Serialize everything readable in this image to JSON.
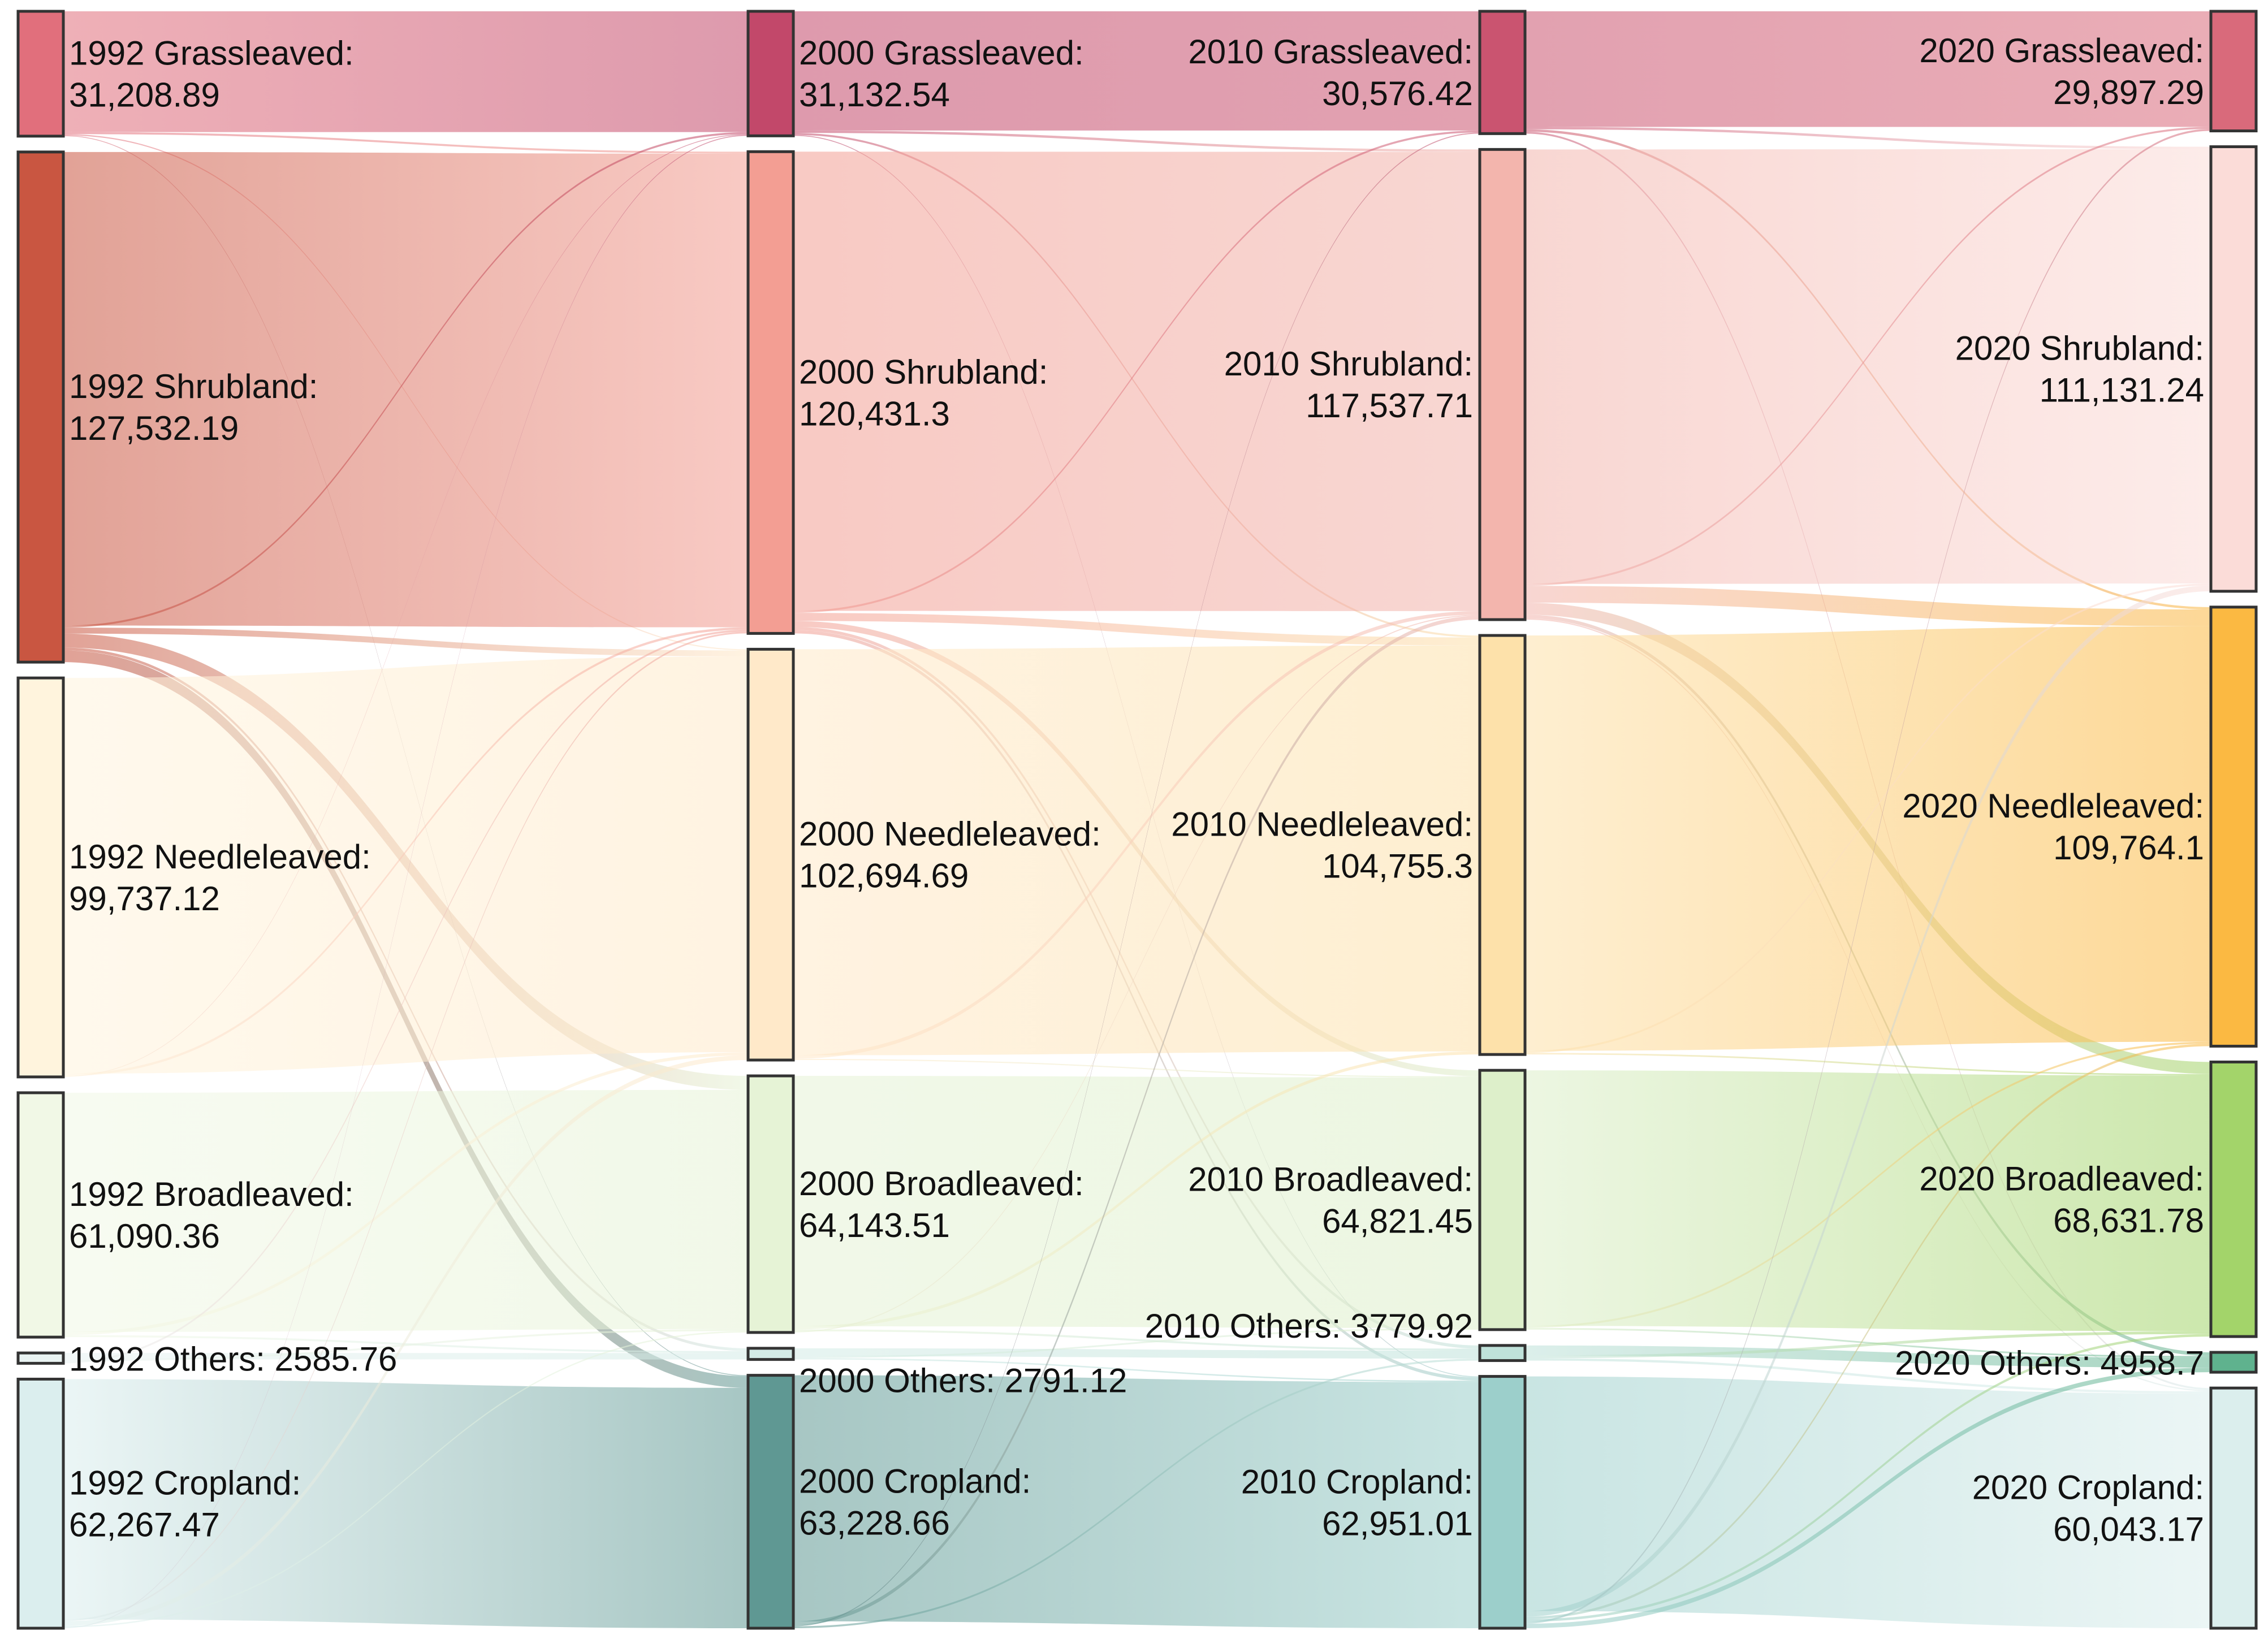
{
  "chart_data": {
    "type": "sankey",
    "title": "",
    "columns": [
      "1992",
      "2000",
      "2010",
      "2020"
    ],
    "categories": [
      "Grassleaved",
      "Shrubland",
      "Needleleaved",
      "Broadleaved",
      "Others",
      "Cropland"
    ],
    "nodes": [
      {
        "id": "1992-Grassleaved",
        "year": "1992",
        "category": "Grassleaved",
        "value": 31208.89,
        "color": "#e16f7c",
        "line1": "1992 Grassleaved:",
        "line2": "31,208.89"
      },
      {
        "id": "1992-Shrubland",
        "year": "1992",
        "category": "Shrubland",
        "value": 127532.19,
        "color": "#c95641",
        "line1": "1992 Shrubland:",
        "line2": "127,532.19"
      },
      {
        "id": "1992-Needleleaved",
        "year": "1992",
        "category": "Needleleaved",
        "value": 99737.12,
        "color": "#fff4dd",
        "line1": "1992 Needleleaved:",
        "line2": "99,737.12"
      },
      {
        "id": "1992-Broadleaved",
        "year": "1992",
        "category": "Broadleaved",
        "value": 61090.36,
        "color": "#f1f8e6",
        "line1": "1992 Broadleaved:",
        "line2": "61,090.36"
      },
      {
        "id": "1992-Others",
        "year": "1992",
        "category": "Others",
        "value": 2585.76,
        "color": "#e9f3f2",
        "line1": "1992 Others: 2585.76",
        "line2": ""
      },
      {
        "id": "1992-Cropland",
        "year": "1992",
        "category": "Cropland",
        "value": 62267.47,
        "color": "#dbeeee",
        "line1": "1992 Cropland:",
        "line2": "62,267.47"
      },
      {
        "id": "2000-Grassleaved",
        "year": "2000",
        "category": "Grassleaved",
        "value": 31132.54,
        "color": "#c2486a",
        "line1": "2000 Grassleaved:",
        "line2": "31,132.54"
      },
      {
        "id": "2000-Shrubland",
        "year": "2000",
        "category": "Shrubland",
        "value": 120431.3,
        "color": "#f39e93",
        "line1": "2000 Shrubland:",
        "line2": "120,431.3"
      },
      {
        "id": "2000-Needleleaved",
        "year": "2000",
        "category": "Needleleaved",
        "value": 102694.69,
        "color": "#ffe9c9",
        "line1": "2000 Needleleaved:",
        "line2": "102,694.69"
      },
      {
        "id": "2000-Broadleaved",
        "year": "2000",
        "category": "Broadleaved",
        "value": 64143.51,
        "color": "#e6f3d6",
        "line1": "2000 Broadleaved:",
        "line2": "64,143.51"
      },
      {
        "id": "2000-Others",
        "year": "2000",
        "category": "Others",
        "value": 2791.12,
        "color": "#d3ebe6",
        "line1": "2000 Others: 2791.12",
        "line2": ""
      },
      {
        "id": "2000-Cropland",
        "year": "2000",
        "category": "Cropland",
        "value": 63228.66,
        "color": "#5f9893",
        "line1": "2000 Cropland:",
        "line2": "63,228.66"
      },
      {
        "id": "2010-Grassleaved",
        "year": "2010",
        "category": "Grassleaved",
        "value": 30576.42,
        "color": "#ca5470",
        "line1": "2010 Grassleaved:",
        "line2": "30,576.42"
      },
      {
        "id": "2010-Shrubland",
        "year": "2010",
        "category": "Shrubland",
        "value": 117537.71,
        "color": "#f3b5ad",
        "line1": "2010 Shrubland:",
        "line2": "117,537.71"
      },
      {
        "id": "2010-Needleleaved",
        "year": "2010",
        "category": "Needleleaved",
        "value": 104755.3,
        "color": "#fde1aa",
        "line1": "2010 Needleleaved:",
        "line2": "104,755.3"
      },
      {
        "id": "2010-Broadleaved",
        "year": "2010",
        "category": "Broadleaved",
        "value": 64821.45,
        "color": "#ddefca",
        "line1": "2010 Broadleaved:",
        "line2": "64,821.45"
      },
      {
        "id": "2010-Others",
        "year": "2010",
        "category": "Others",
        "value": 3779.92,
        "color": "#bfe2da",
        "line1": "2010 Others: 3779.92",
        "line2": ""
      },
      {
        "id": "2010-Cropland",
        "year": "2010",
        "category": "Cropland",
        "value": 62951.01,
        "color": "#9ccfcb",
        "line1": "2010 Cropland:",
        "line2": "62,951.01"
      },
      {
        "id": "2020-Grassleaved",
        "year": "2020",
        "category": "Grassleaved",
        "value": 29897.29,
        "color": "#d96a7b",
        "line1": "2020 Grassleaved:",
        "line2": "29,897.29"
      },
      {
        "id": "2020-Shrubland",
        "year": "2020",
        "category": "Shrubland",
        "value": 111131.24,
        "color": "#fbdcd8",
        "line1": "2020 Shrubland:",
        "line2": "111,131.24"
      },
      {
        "id": "2020-Needleleaved",
        "year": "2020",
        "category": "Needleleaved",
        "value": 109764.1,
        "color": "#fbb942",
        "line1": "2020 Needleleaved:",
        "line2": "109,764.1"
      },
      {
        "id": "2020-Broadleaved",
        "year": "2020",
        "category": "Broadleaved",
        "value": 68631.78,
        "color": "#a3d46a",
        "line1": "2020 Broadleaved:",
        "line2": "68,631.78"
      },
      {
        "id": "2020-Others",
        "year": "2020",
        "category": "Others",
        "value": 4958.7,
        "color": "#5fb28e",
        "line1": "2020 Others:  4958.7",
        "line2": ""
      },
      {
        "id": "2020-Cropland",
        "year": "2020",
        "category": "Cropland",
        "value": 60043.17,
        "color": "#dbeeed",
        "line1": "2020 Cropland:",
        "line2": "60,043.17"
      }
    ],
    "links": [
      {
        "source": "1992-Grassleaved",
        "target": "2000-Grassleaved",
        "value": 30200
      },
      {
        "source": "1992-Grassleaved",
        "target": "2000-Shrubland",
        "value": 500
      },
      {
        "source": "1992-Grassleaved",
        "target": "2000-Needleleaved",
        "value": 300
      },
      {
        "source": "1992-Grassleaved",
        "target": "2000-Cropland",
        "value": 208.89
      },
      {
        "source": "1992-Shrubland",
        "target": "2000-Shrubland",
        "value": 118400
      },
      {
        "source": "1992-Shrubland",
        "target": "2000-Grassleaved",
        "value": 500
      },
      {
        "source": "1992-Shrubland",
        "target": "2000-Needleleaved",
        "value": 1500
      },
      {
        "source": "1992-Shrubland",
        "target": "2000-Broadleaved",
        "value": 3500
      },
      {
        "source": "1992-Shrubland",
        "target": "2000-Others",
        "value": 700
      },
      {
        "source": "1992-Shrubland",
        "target": "2000-Cropland",
        "value": 2932.19
      },
      {
        "source": "1992-Needleleaved",
        "target": "2000-Needleleaved",
        "value": 98937.12
      },
      {
        "source": "1992-Needleleaved",
        "target": "2000-Shrubland",
        "value": 600
      },
      {
        "source": "1992-Needleleaved",
        "target": "2000-Grassleaved",
        "value": 200
      },
      {
        "source": "1992-Broadleaved",
        "target": "2000-Broadleaved",
        "value": 59800
      },
      {
        "source": "1992-Broadleaved",
        "target": "2000-Needleleaved",
        "value": 800
      },
      {
        "source": "1992-Broadleaved",
        "target": "2000-Others",
        "value": 490.36
      },
      {
        "source": "1992-Others",
        "target": "2000-Others",
        "value": 1600.76
      },
      {
        "source": "1992-Others",
        "target": "2000-Broadleaved",
        "value": 485
      },
      {
        "source": "1992-Others",
        "target": "2000-Shrubland",
        "value": 500
      },
      {
        "source": "1992-Cropland",
        "target": "2000-Cropland",
        "value": 60087.47
      },
      {
        "source": "1992-Cropland",
        "target": "2000-Shrubland",
        "value": 431.3
      },
      {
        "source": "1992-Cropland",
        "target": "2000-Needleleaved",
        "value": 1157.57
      },
      {
        "source": "1992-Cropland",
        "target": "2000-Broadleaved",
        "value": 358.51
      },
      {
        "source": "1992-Cropland",
        "target": "2000-Grassleaved",
        "value": 232.54
      },
      {
        "source": "2000-Grassleaved",
        "target": "2010-Grassleaved",
        "value": 29800
      },
      {
        "source": "2000-Grassleaved",
        "target": "2010-Shrubland",
        "value": 600
      },
      {
        "source": "2000-Grassleaved",
        "target": "2010-Needleleaved",
        "value": 500
      },
      {
        "source": "2000-Grassleaved",
        "target": "2010-Cropland",
        "value": 232.54
      },
      {
        "source": "2000-Shrubland",
        "target": "2010-Shrubland",
        "value": 114800
      },
      {
        "source": "2000-Shrubland",
        "target": "2010-Grassleaved",
        "value": 500
      },
      {
        "source": "2000-Shrubland",
        "target": "2010-Needleleaved",
        "value": 2000
      },
      {
        "source": "2000-Shrubland",
        "target": "2010-Broadleaved",
        "value": 1500
      },
      {
        "source": "2000-Shrubland",
        "target": "2010-Others",
        "value": 800
      },
      {
        "source": "2000-Shrubland",
        "target": "2010-Cropland",
        "value": 831.3
      },
      {
        "source": "2000-Needleleaved",
        "target": "2010-Needleleaved",
        "value": 101494.69
      },
      {
        "source": "2000-Needleleaved",
        "target": "2010-Shrubland",
        "value": 900
      },
      {
        "source": "2000-Needleleaved",
        "target": "2010-Broadleaved",
        "value": 300
      },
      {
        "source": "2000-Broadleaved",
        "target": "2010-Broadleaved",
        "value": 62600
      },
      {
        "source": "2000-Broadleaved",
        "target": "2010-Needleleaved",
        "value": 760.61
      },
      {
        "source": "2000-Broadleaved",
        "target": "2010-Others",
        "value": 500
      },
      {
        "source": "2000-Broadleaved",
        "target": "2010-Shrubland",
        "value": 282.9
      },
      {
        "source": "2000-Others",
        "target": "2010-Others",
        "value": 2000
      },
      {
        "source": "2000-Others",
        "target": "2010-Broadleaved",
        "value": 421.45
      },
      {
        "source": "2000-Others",
        "target": "2010-Cropland",
        "value": 369.67
      },
      {
        "source": "2000-Cropland",
        "target": "2010-Cropland",
        "value": 61517.5
      },
      {
        "source": "2000-Cropland",
        "target": "2010-Shrubland",
        "value": 954.81
      },
      {
        "source": "2000-Cropland",
        "target": "2010-Grassleaved",
        "value": 276.42
      },
      {
        "source": "2000-Cropland",
        "target": "2010-Others",
        "value": 479.92
      },
      {
        "source": "2010-Grassleaved",
        "target": "2020-Grassleaved",
        "value": 28900
      },
      {
        "source": "2010-Grassleaved",
        "target": "2020-Shrubland",
        "value": 600
      },
      {
        "source": "2010-Grassleaved",
        "target": "2020-Needleleaved",
        "value": 600
      },
      {
        "source": "2010-Grassleaved",
        "target": "2020-Cropland",
        "value": 476.42
      },
      {
        "source": "2010-Shrubland",
        "target": "2020-Shrubland",
        "value": 108600
      },
      {
        "source": "2010-Shrubland",
        "target": "2020-Grassleaved",
        "value": 500
      },
      {
        "source": "2010-Shrubland",
        "target": "2020-Needleleaved",
        "value": 4200
      },
      {
        "source": "2010-Shrubland",
        "target": "2020-Broadleaved",
        "value": 3000
      },
      {
        "source": "2010-Shrubland",
        "target": "2020-Others",
        "value": 900
      },
      {
        "source": "2010-Shrubland",
        "target": "2020-Cropland",
        "value": 337.71
      },
      {
        "source": "2010-Needleleaved",
        "target": "2020-Needleleaved",
        "value": 103855.3
      },
      {
        "source": "2010-Needleleaved",
        "target": "2020-Shrubland",
        "value": 500
      },
      {
        "source": "2010-Needleleaved",
        "target": "2020-Broadleaved",
        "value": 400
      },
      {
        "source": "2010-Broadleaved",
        "target": "2020-Broadleaved",
        "value": 63900
      },
      {
        "source": "2010-Broadleaved",
        "target": "2020-Needleleaved",
        "value": 500
      },
      {
        "source": "2010-Broadleaved",
        "target": "2020-Others",
        "value": 421.45
      },
      {
        "source": "2010-Others",
        "target": "2020-Others",
        "value": 2500
      },
      {
        "source": "2010-Others",
        "target": "2020-Broadleaved",
        "value": 700
      },
      {
        "source": "2010-Others",
        "target": "2020-Cropland",
        "value": 579.92
      },
      {
        "source": "2010-Cropland",
        "target": "2020-Cropland",
        "value": 58649.12
      },
      {
        "source": "2010-Cropland",
        "target": "2020-Shrubland",
        "value": 1431.24
      },
      {
        "source": "2010-Cropland",
        "target": "2020-Needleleaved",
        "value": 608.8
      },
      {
        "source": "2010-Cropland",
        "target": "2020-Broadleaved",
        "value": 631.78
      },
      {
        "source": "2010-Cropland",
        "target": "2020-Grassleaved",
        "value": 497.29
      },
      {
        "source": "2010-Cropland",
        "target": "2020-Others",
        "value": 1137.25
      }
    ]
  }
}
